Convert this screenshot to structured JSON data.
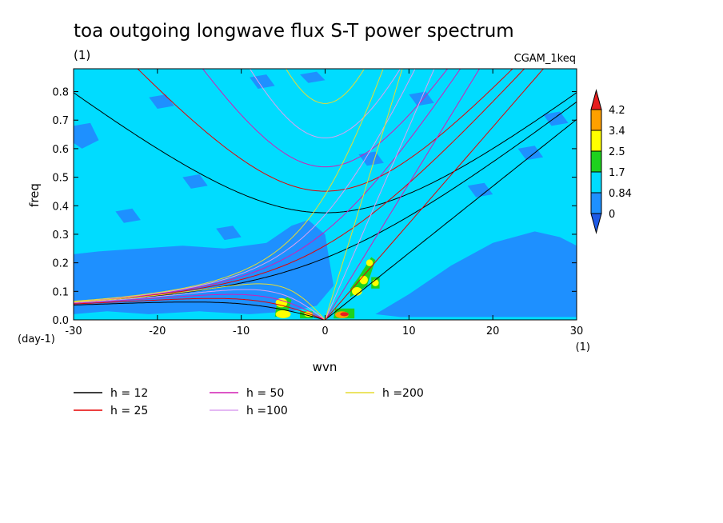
{
  "chart_data": {
    "type": "heatmap",
    "title": "toa outgoing longwave flux S-T power spectrum",
    "subtitle": "(1)",
    "run_label": "CGAM_1keq",
    "xlabel": "wvn",
    "ylabel": "freq",
    "x_unit": "(1)",
    "y_unit": "(day-1)",
    "xlim": [
      -30,
      30
    ],
    "ylim": [
      0,
      0.88
    ],
    "x_ticks": [
      -30,
      -20,
      -10,
      0,
      10,
      20,
      30
    ],
    "x_tick_labels": [
      "-30",
      "-20",
      "-10",
      "0",
      "10",
      "20",
      "30"
    ],
    "y_ticks": [
      0,
      0.1,
      0.2,
      0.3,
      0.4,
      0.5,
      0.6,
      0.7,
      0.8
    ],
    "y_tick_labels": [
      "0.0",
      "0.1",
      "0.2",
      "0.3",
      "0.4",
      "0.5",
      "0.6",
      "0.7",
      "0.8"
    ],
    "colorbar": {
      "levels": [
        0,
        0.84,
        1.7,
        2.5,
        3.4,
        4.2
      ],
      "labels": [
        "0",
        "0.84",
        "1.7",
        "2.5",
        "3.4",
        "4.2"
      ],
      "colors": [
        "#1e90ff",
        "#00dcff",
        "#1ed21e",
        "#ffff00",
        "#ffa000",
        "#e61e1e"
      ],
      "under_color": "#1e5ae6",
      "over_color": "#e61e1e"
    },
    "field": {
      "background_color": "#00dcff",
      "low_power_color": "#1e90ff",
      "low_power_regions": [
        {
          "x": [
            -30,
            -27,
            -22,
            -17,
            -12,
            -7,
            -4,
            -2,
            0,
            1,
            -1,
            -4,
            -9,
            -15,
            -21,
            -26,
            -30
          ],
          "y": [
            0.23,
            0.24,
            0.25,
            0.26,
            0.25,
            0.27,
            0.33,
            0.35,
            0.3,
            0.12,
            0.05,
            0.03,
            0.02,
            0.03,
            0.02,
            0.03,
            0.02
          ]
        },
        {
          "x": [
            6,
            10,
            15,
            20,
            25,
            28,
            30,
            30,
            26,
            20,
            14,
            9,
            6
          ],
          "y": [
            0.02,
            0.09,
            0.19,
            0.27,
            0.31,
            0.29,
            0.26,
            0.01,
            0.01,
            0.01,
            0.01,
            0.01,
            0.02
          ]
        },
        {
          "x": [
            -30,
            -28,
            -27,
            -29,
            -30
          ],
          "y": [
            0.68,
            0.69,
            0.63,
            0.6,
            0.62
          ]
        },
        {
          "x": [
            -9,
            -7,
            -6,
            -8
          ],
          "y": [
            0.85,
            0.86,
            0.82,
            0.81
          ]
        },
        {
          "x": [
            -3,
            -1,
            0,
            -2
          ],
          "y": [
            0.86,
            0.87,
            0.84,
            0.83
          ]
        },
        {
          "x": [
            10,
            12,
            13,
            11
          ],
          "y": [
            0.79,
            0.8,
            0.76,
            0.75
          ]
        },
        {
          "x": [
            17,
            19,
            20,
            18
          ],
          "y": [
            0.47,
            0.48,
            0.44,
            0.43
          ]
        },
        {
          "x": [
            23,
            25,
            26,
            24
          ],
          "y": [
            0.6,
            0.61,
            0.57,
            0.56
          ]
        },
        {
          "x": [
            -17,
            -15,
            -14,
            -16
          ],
          "y": [
            0.5,
            0.51,
            0.47,
            0.46
          ]
        },
        {
          "x": [
            -25,
            -23,
            -22,
            -24
          ],
          "y": [
            0.38,
            0.39,
            0.35,
            0.34
          ]
        },
        {
          "x": [
            26,
            28,
            29,
            27
          ],
          "y": [
            0.72,
            0.73,
            0.69,
            0.68
          ]
        },
        {
          "x": [
            -13,
            -11,
            -10,
            -12
          ],
          "y": [
            0.32,
            0.33,
            0.29,
            0.28
          ]
        },
        {
          "x": [
            4,
            6,
            7,
            5
          ],
          "y": [
            0.58,
            0.59,
            0.55,
            0.54
          ]
        },
        {
          "x": [
            -21,
            -19,
            -18,
            -20
          ],
          "y": [
            0.78,
            0.79,
            0.75,
            0.74
          ]
        }
      ],
      "peaks": [
        {
          "x": -5.2,
          "y": 0.06,
          "rx": 0.7,
          "ry": 0.016,
          "color": "#ffff00"
        },
        {
          "x": -5.0,
          "y": 0.02,
          "rx": 0.9,
          "ry": 0.014,
          "color": "#ffff00"
        },
        {
          "x": 2.0,
          "y": 0.018,
          "rx": 0.8,
          "ry": 0.012,
          "color": "#ffa000"
        },
        {
          "x": 2.3,
          "y": 0.02,
          "rx": 0.5,
          "ry": 0.007,
          "color": "#e61e1e"
        },
        {
          "x": 3.8,
          "y": 0.1,
          "rx": 0.6,
          "ry": 0.015,
          "color": "#ffff00"
        },
        {
          "x": 4.6,
          "y": 0.14,
          "rx": 0.5,
          "ry": 0.015,
          "color": "#ffff00"
        },
        {
          "x": 5.3,
          "y": 0.2,
          "rx": 0.4,
          "ry": 0.012,
          "color": "#ffff00"
        },
        {
          "x": 6.0,
          "y": 0.13,
          "rx": 0.4,
          "ry": 0.012,
          "color": "#ffff00"
        },
        {
          "x": -2.0,
          "y": 0.02,
          "rx": 0.5,
          "ry": 0.01,
          "color": "#ffff00"
        }
      ],
      "green_patches": [
        {
          "x": [
            -6,
            -4.5,
            -4,
            -4.5,
            -5.8
          ],
          "y": [
            0.01,
            0.02,
            0.07,
            0.08,
            0.05
          ]
        },
        {
          "x": [
            1,
            3.5,
            3.5,
            1.2
          ],
          "y": [
            0.005,
            0.005,
            0.04,
            0.04
          ]
        },
        {
          "x": [
            3,
            5,
            6,
            5.5,
            4,
            3
          ],
          "y": [
            0.08,
            0.12,
            0.21,
            0.22,
            0.15,
            0.11
          ]
        },
        {
          "x": [
            5.5,
            6.5,
            6.5,
            5.5
          ],
          "y": [
            0.11,
            0.11,
            0.15,
            0.15
          ]
        },
        {
          "x": [
            -3,
            -1.5,
            -1.5,
            -3
          ],
          "y": [
            0.005,
            0.005,
            0.03,
            0.03
          ]
        }
      ]
    },
    "series": [
      {
        "name": "h = 12",
        "label": "h = 12",
        "color": "#000000",
        "h": 12
      },
      {
        "name": "h = 25",
        "label": "h = 25",
        "color": "#e60000",
        "h": 25
      },
      {
        "name": "h = 50",
        "label": "h = 50",
        "color": "#d21eb4",
        "h": 50
      },
      {
        "name": "h =100",
        "label": "h =100",
        "color": "#dca0f0",
        "h": 100
      },
      {
        "name": "h =200",
        "label": "h =200",
        "color": "#e6dc32",
        "h": 200
      }
    ],
    "legend_position": "bottom-left"
  }
}
